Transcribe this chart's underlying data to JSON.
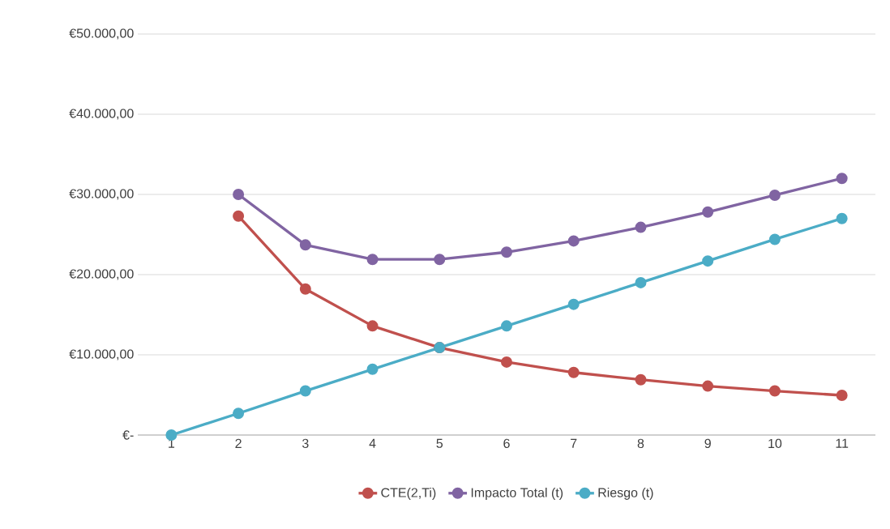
{
  "chart_data": {
    "type": "line",
    "categories": [
      "1",
      "2",
      "3",
      "4",
      "5",
      "6",
      "7",
      "8",
      "9",
      "10",
      "11"
    ],
    "series": [
      {
        "name": "CTE(2,Ti)",
        "color": "#c0504d",
        "values": [
          null,
          27300,
          18200,
          13600,
          10900,
          9100,
          7800,
          6900,
          6100,
          5500,
          4950
        ]
      },
      {
        "name": "Impacto Total (t)",
        "color": "#8064a2",
        "values": [
          null,
          30000,
          23700,
          21900,
          21900,
          22800,
          24200,
          25900,
          27800,
          29900,
          32000
        ]
      },
      {
        "name": "Riesgo (t)",
        "color": "#4bacc6",
        "values": [
          0,
          2700,
          5500,
          8200,
          10900,
          13600,
          16300,
          19000,
          21700,
          24400,
          27000
        ]
      }
    ],
    "ylim": [
      0,
      50000
    ],
    "yticks": [
      {
        "value": 0,
        "label": "€-"
      },
      {
        "value": 10000,
        "label": "€10.000,00"
      },
      {
        "value": 20000,
        "label": "€20.000,00"
      },
      {
        "value": 30000,
        "label": "€30.000,00"
      },
      {
        "value": 40000,
        "label": "€40.000,00"
      },
      {
        "value": 50000,
        "label": "€50.000,00"
      }
    ],
    "grid": "y",
    "legend": "bottom",
    "marker": "circle",
    "line_style": "solid"
  }
}
